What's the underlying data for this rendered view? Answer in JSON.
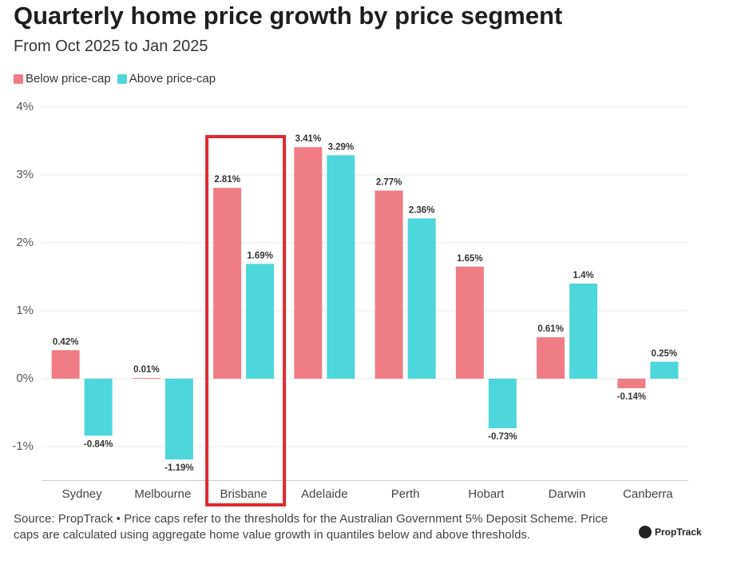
{
  "chart_data": {
    "type": "bar",
    "title": "Quarterly home price growth by price segment",
    "subtitle": "From Oct 2025 to Jan 2025",
    "categories": [
      "Sydney",
      "Melbourne",
      "Brisbane",
      "Adelaide",
      "Perth",
      "Hobart",
      "Darwin",
      "Canberra"
    ],
    "series": [
      {
        "name": "Below price-cap",
        "color": "#f07c86",
        "values": [
          0.42,
          0.01,
          2.81,
          3.41,
          2.77,
          1.65,
          0.61,
          -0.14
        ],
        "value_labels": [
          "0.42%",
          "0.01%",
          "2.81%",
          "3.41%",
          "2.77%",
          "1.65%",
          "0.61%",
          "-0.14%"
        ]
      },
      {
        "name": "Above price-cap",
        "color": "#4dd6dc",
        "values": [
          -0.84,
          -1.19,
          1.69,
          3.29,
          2.36,
          -0.73,
          1.4,
          0.25
        ],
        "value_labels": [
          "-0.84%",
          "-1.19%",
          "1.69%",
          "3.29%",
          "2.36%",
          "-0.73%",
          "1.4%",
          "0.25%"
        ]
      }
    ],
    "ylim": [
      -1.5,
      4
    ],
    "yticks": [
      {
        "value": -1,
        "label": "-1%"
      },
      {
        "value": 0,
        "label": "0%"
      },
      {
        "value": 1,
        "label": "1%"
      },
      {
        "value": 2,
        "label": "2%"
      },
      {
        "value": 3,
        "label": "3%"
      },
      {
        "value": 4,
        "label": "4%"
      }
    ],
    "grid": true,
    "highlight_category": "Brisbane",
    "source": "Source: PropTrack • Price caps refer to the thresholds for the Australian Government 5% Deposit Scheme. Price caps are calculated using aggregate home value growth in quantiles below and above thresholds.",
    "logo": "PropTrack"
  }
}
